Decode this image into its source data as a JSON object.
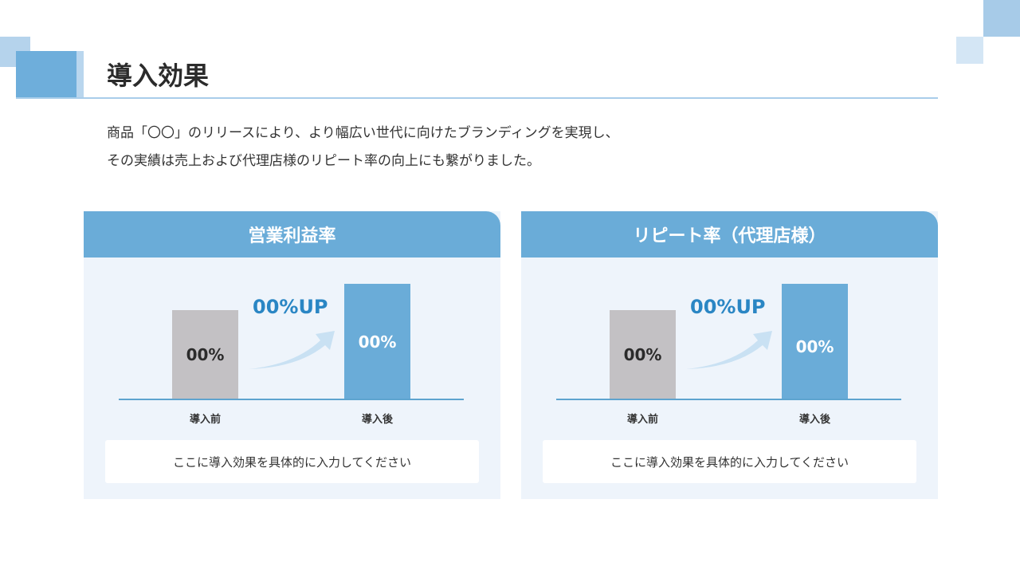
{
  "title": "導入効果",
  "description": [
    "商品「〇〇」のリリースにより、より幅広い世代に向けたブランディングを実現し、",
    "その実績は売上および代理店様のリピート率の向上にも繋がりました。"
  ],
  "colors": {
    "accent": "#6aacd8",
    "up_text": "#2a86c4",
    "before_bar": "#c3c1c4",
    "card_bg": "#eef4fb"
  },
  "cards": [
    {
      "heading": "営業利益率",
      "before_value": "00%",
      "after_value": "00%",
      "increase": "00%UP",
      "before_label": "導入前",
      "after_label": "導入後",
      "note": "ここに導入効果を具体的に入力してください"
    },
    {
      "heading": "リピート率（代理店様）",
      "before_value": "00%",
      "after_value": "00%",
      "increase": "00%UP",
      "before_label": "導入前",
      "after_label": "導入後",
      "note": "ここに導入効果を具体的に入力してください"
    }
  ]
}
